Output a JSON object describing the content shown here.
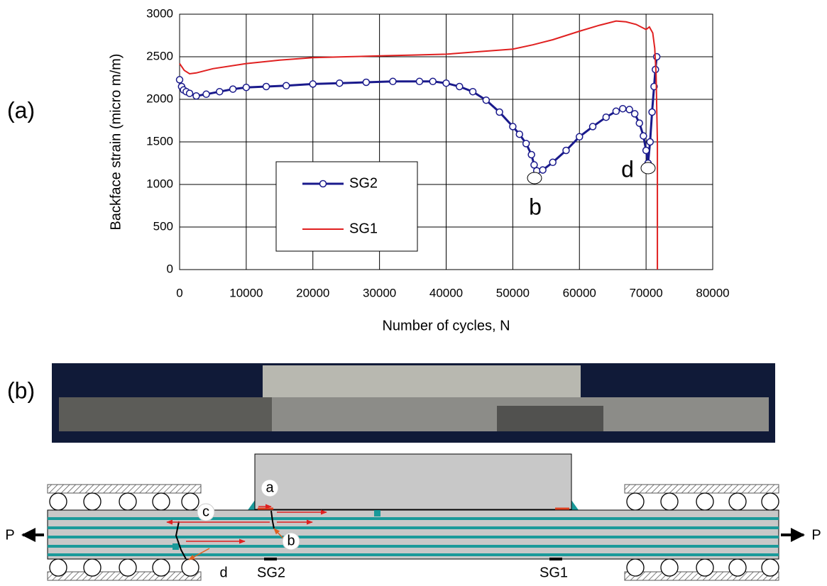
{
  "panel_labels": [
    "(a)",
    "(b)"
  ],
  "chart_data": {
    "type": "line",
    "xlabel": "Number of cycles, N",
    "ylabel": "Backface strain (micro m/m)",
    "xlim": [
      0,
      80000
    ],
    "ylim": [
      0,
      3000
    ],
    "xticks": [
      0,
      10000,
      20000,
      30000,
      40000,
      50000,
      60000,
      70000,
      80000
    ],
    "yticks": [
      0,
      500,
      1000,
      1500,
      2000,
      2500,
      3000
    ],
    "grid": true,
    "legend": "center",
    "annotations": [
      "b",
      "d"
    ],
    "series": [
      {
        "name": "SG2",
        "color": "#1a1a8c",
        "marker": "circle",
        "x": [
          0,
          300,
          600,
          1000,
          1500,
          2500,
          4000,
          6000,
          8000,
          10000,
          13000,
          16000,
          20000,
          24000,
          28000,
          32000,
          36000,
          38000,
          40000,
          42000,
          44000,
          46000,
          48000,
          50000,
          51000,
          52000,
          52800,
          53200,
          53600,
          54500,
          56000,
          58000,
          60000,
          62000,
          64000,
          65500,
          66500,
          67500,
          68300,
          69000,
          69600,
          70000,
          70300,
          70600,
          70900,
          71200,
          71400,
          71600
        ],
        "values": [
          2230,
          2150,
          2110,
          2090,
          2070,
          2040,
          2060,
          2090,
          2120,
          2140,
          2150,
          2160,
          2180,
          2190,
          2200,
          2210,
          2210,
          2210,
          2190,
          2150,
          2090,
          1990,
          1850,
          1680,
          1590,
          1480,
          1350,
          1230,
          1160,
          1170,
          1260,
          1400,
          1560,
          1680,
          1790,
          1860,
          1890,
          1880,
          1830,
          1720,
          1570,
          1400,
          1250,
          1500,
          1850,
          2150,
          2350,
          2500
        ]
      },
      {
        "name": "SG1",
        "color": "#e02020",
        "marker": "none",
        "x": [
          0,
          700,
          1500,
          2500,
          5000,
          10000,
          15000,
          20000,
          25000,
          30000,
          35000,
          40000,
          45000,
          50000,
          53000,
          56000,
          60000,
          63000,
          65500,
          67000,
          68500,
          70000,
          70500,
          71000,
          71300,
          71500,
          71700,
          71700
        ],
        "values": [
          2420,
          2340,
          2300,
          2310,
          2360,
          2420,
          2460,
          2490,
          2500,
          2510,
          2520,
          2530,
          2560,
          2590,
          2640,
          2700,
          2800,
          2870,
          2920,
          2910,
          2880,
          2820,
          2850,
          2780,
          2600,
          2300,
          1500,
          0
        ]
      }
    ]
  },
  "diagram": {
    "labels": [
      "a",
      "b",
      "c",
      "d",
      "SG2",
      "SG1",
      "P",
      "P"
    ]
  }
}
